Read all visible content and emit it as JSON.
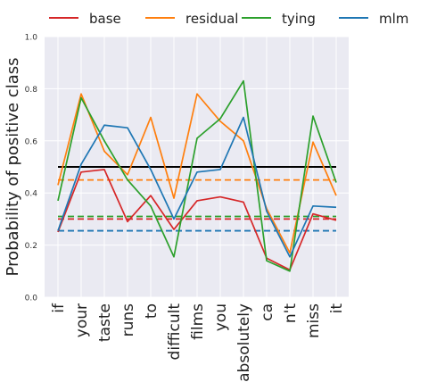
{
  "chart_data": {
    "type": "line",
    "title": "",
    "xlabel": "",
    "ylabel": "Probability of positive class",
    "categories": [
      "if",
      "your",
      "taste",
      "runs",
      "to",
      "difficult",
      "films",
      "you",
      "absolutely",
      "ca",
      "n't",
      "miss",
      "it"
    ],
    "ylim": [
      0.0,
      1.0
    ],
    "yticks": [
      "0.0",
      "0.2",
      "0.4",
      "0.6",
      "0.8",
      "1.0"
    ],
    "grid": true,
    "legend_position": "top",
    "series": [
      {
        "name": "base",
        "color": "#d62728",
        "values": [
          0.25,
          0.48,
          0.49,
          0.29,
          0.39,
          0.26,
          0.37,
          0.385,
          0.365,
          0.15,
          0.105,
          0.32,
          0.295
        ]
      },
      {
        "name": "residual",
        "color": "#ff7f0e",
        "values": [
          0.43,
          0.78,
          0.56,
          0.47,
          0.69,
          0.38,
          0.78,
          0.675,
          0.6,
          0.34,
          0.17,
          0.595,
          0.39
        ]
      },
      {
        "name": "tying",
        "color": "#2ca02c",
        "values": [
          0.37,
          0.765,
          0.6,
          0.45,
          0.35,
          0.155,
          0.61,
          0.685,
          0.83,
          0.14,
          0.1,
          0.695,
          0.44
        ]
      },
      {
        "name": "mlm",
        "color": "#1f77b4",
        "values": [
          0.255,
          0.51,
          0.66,
          0.65,
          0.49,
          0.3,
          0.48,
          0.49,
          0.69,
          0.33,
          0.155,
          0.35,
          0.345
        ]
      }
    ],
    "reference_lines": [
      {
        "value": 0.5,
        "color": "#000000",
        "style": "solid"
      },
      {
        "value": 0.45,
        "color": "#ff7f0e",
        "style": "dashed"
      },
      {
        "value": 0.31,
        "color": "#2ca02c",
        "style": "dashed"
      },
      {
        "value": 0.3,
        "color": "#d62728",
        "style": "dashed"
      },
      {
        "value": 0.255,
        "color": "#1f77b4",
        "style": "dashed"
      }
    ],
    "background_color": "#eaeaf2"
  }
}
